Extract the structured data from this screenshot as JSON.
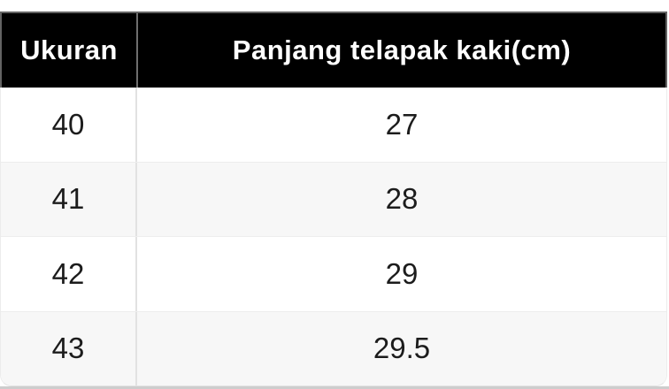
{
  "table": {
    "headers": [
      {
        "label": "Ukuran"
      },
      {
        "label": "Panjang telapak kaki(cm)"
      }
    ],
    "rows": [
      {
        "size": "40",
        "length": "27"
      },
      {
        "size": "41",
        "length": "28"
      },
      {
        "size": "42",
        "length": "29"
      },
      {
        "size": "43",
        "length": "29.5"
      }
    ],
    "colors": {
      "header_bg": "#000000",
      "header_text": "#ffffff",
      "header_border": "#636363",
      "row_plain_bg": "#ffffff",
      "row_stripe_bg": "#f7f7f7",
      "body_text": "#1c1c1c",
      "column_divider": "#e2e2e2",
      "bottom_strip": "#cdcdcd"
    }
  },
  "chart_data": {
    "type": "table",
    "title": "",
    "columns": [
      "Ukuran",
      "Panjang telapak kaki(cm)"
    ],
    "rows": [
      [
        "40",
        "27"
      ],
      [
        "41",
        "28"
      ],
      [
        "42",
        "29"
      ],
      [
        "43",
        "29.5"
      ]
    ]
  }
}
